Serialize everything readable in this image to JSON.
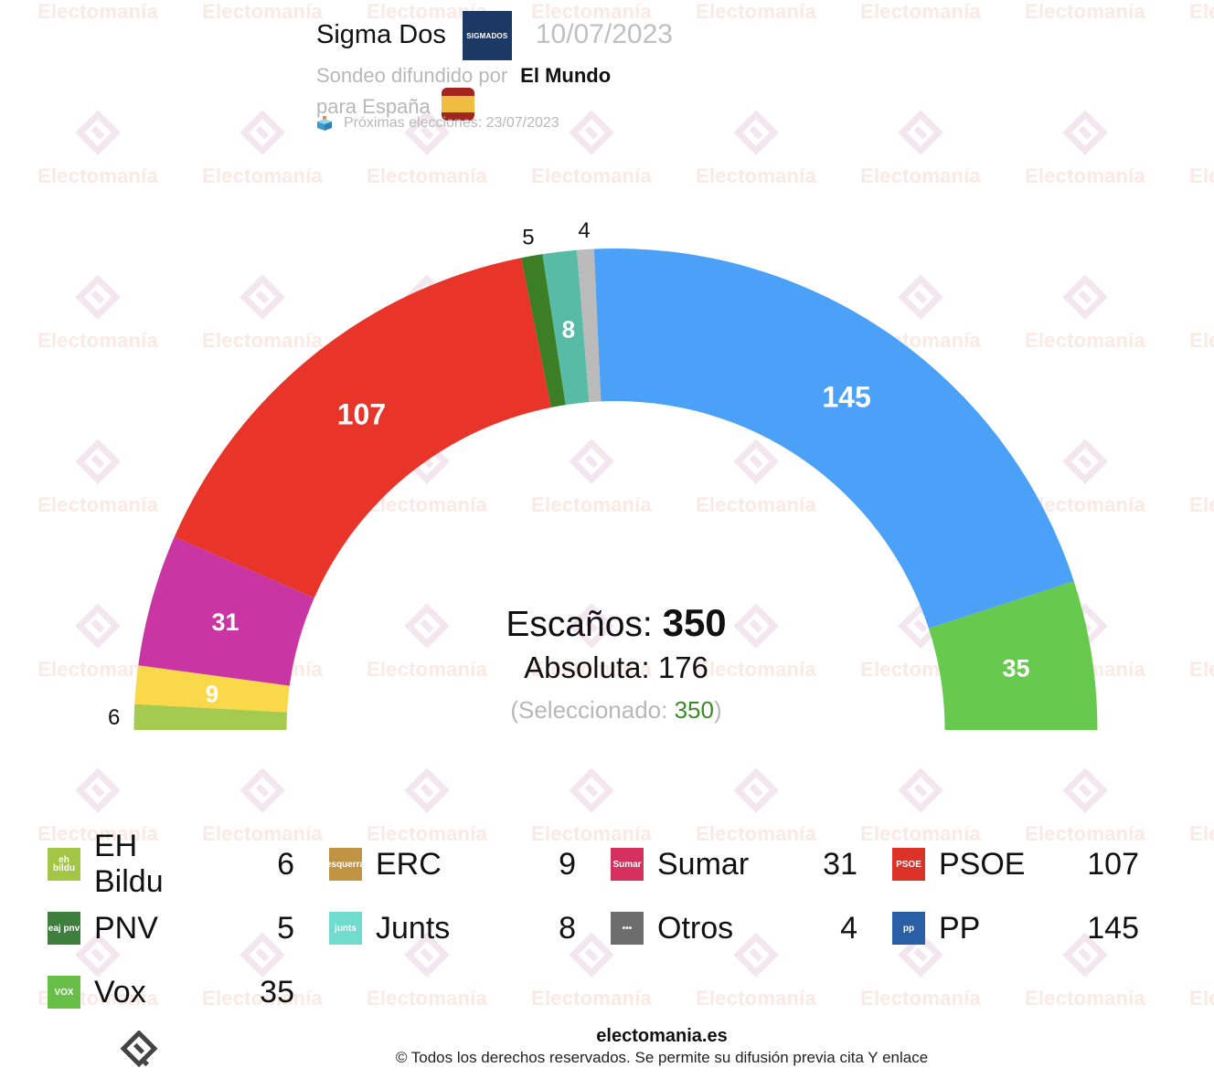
{
  "header": {
    "pollster": "Sigma Dos",
    "pollster_logo_text": "SIGMADOS",
    "date": "10/07/2023",
    "published_by_label": "Sondeo difundido por",
    "media": "El Mundo",
    "region_label": "para España",
    "flag_icon": "spain-flag-icon",
    "next_election_icon": "ballot-box-icon",
    "next_election": "Próximas elecciones: 23/07/2023"
  },
  "center": {
    "seats_label": "Escaños: ",
    "seats_total": "350",
    "majority_label": "Absoluta: 176",
    "selected_prefix": "(Seleccionado: ",
    "selected_value": "350",
    "selected_suffix": ")"
  },
  "chart_data": {
    "type": "pie",
    "subtype": "parliament-hemicycle",
    "title": "Sigma Dos 10/07/2023 — Escaños",
    "total": 350,
    "majority": 176,
    "categories": [
      "EH Bildu",
      "ERC",
      "Sumar",
      "PSOE",
      "PNV",
      "Junts",
      "Otros",
      "PP",
      "Vox"
    ],
    "values": [
      6,
      9,
      31,
      107,
      5,
      8,
      4,
      145,
      35
    ],
    "colors": [
      "#a4cb4f",
      "#f9d94a",
      "#c936a3",
      "#e9342a",
      "#3b7e26",
      "#58bba6",
      "#bbbbbb",
      "#4aa1f7",
      "#67c94d"
    ],
    "label_inside": [
      false,
      true,
      true,
      true,
      false,
      true,
      false,
      true,
      true
    ]
  },
  "legend": {
    "items": [
      {
        "name": "EH Bildu",
        "seats": "6",
        "logo_text": "eh bildu",
        "logo_color": "#a4c646",
        "icon": "eh-bildu-logo-icon"
      },
      {
        "name": "ERC",
        "seats": "9",
        "logo_text": "esquerra",
        "logo_color": "#c19443",
        "icon": "erc-logo-icon"
      },
      {
        "name": "Sumar",
        "seats": "31",
        "logo_text": "Sumar",
        "logo_color": "#d5305e",
        "icon": "sumar-logo-icon"
      },
      {
        "name": "PSOE",
        "seats": "107",
        "logo_text": "PSOE",
        "logo_color": "#dc3329",
        "icon": "psoe-logo-icon"
      },
      {
        "name": "PNV",
        "seats": "5",
        "logo_text": "eaj pnv",
        "logo_color": "#3f7f3e",
        "icon": "pnv-logo-icon"
      },
      {
        "name": "Junts",
        "seats": "8",
        "logo_text": "junts",
        "logo_color": "#6fdccd",
        "icon": "junts-logo-icon"
      },
      {
        "name": "Otros",
        "seats": "4",
        "logo_text": "•••",
        "logo_color": "#6d6d6d",
        "icon": "others-logo-icon"
      },
      {
        "name": "PP",
        "seats": "145",
        "logo_text": "pp",
        "logo_color": "#2a5ea6",
        "icon": "pp-logo-icon"
      },
      {
        "name": "Vox",
        "seats": "35",
        "logo_text": "VOX",
        "logo_color": "#67bf48",
        "icon": "vox-logo-icon"
      }
    ]
  },
  "watermark": {
    "text": "Electomanía"
  },
  "footer": {
    "site": "electomania.es",
    "copyright": "© Todos los derechos reservados. Se permite su difusión previa cita Y enlace"
  }
}
